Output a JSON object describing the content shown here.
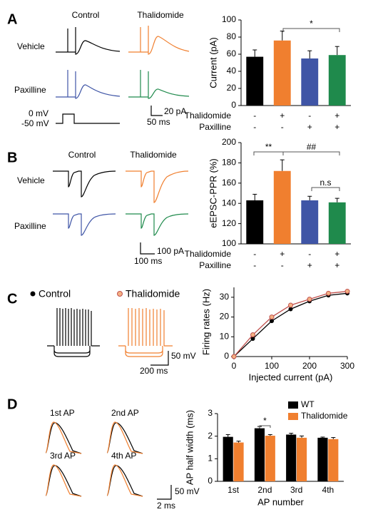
{
  "panel_labels": [
    "A",
    "B",
    "C",
    "D"
  ],
  "panel_a": {
    "columns": [
      "Control",
      "Thalidomide"
    ],
    "rows": [
      "Vehicle",
      "Paxilline"
    ],
    "scale_bar": [
      "20 pA",
      "50 ms"
    ],
    "voltage": [
      "0 mV",
      "-50 mV"
    ]
  },
  "panel_b": {
    "columns": [
      "Control",
      "Thalidomide"
    ],
    "rows": [
      "Vehicle",
      "Paxilline"
    ],
    "scale_bar": [
      "100 pA",
      "100 ms"
    ]
  },
  "panel_c": {
    "scale_bar": [
      "50 mV",
      "200 ms"
    ]
  },
  "panel_d": {
    "traces": [
      "1st AP",
      "2nd AP",
      "3rd AP",
      "4th AP"
    ],
    "scale_bar": [
      "50 mV",
      "2 ms"
    ]
  },
  "chart_data": [
    {
      "type": "bar",
      "ylabel": "Current (pA)",
      "values": [
        57,
        76,
        55,
        59
      ],
      "errors": [
        8,
        11,
        9,
        10
      ],
      "colors": [
        "#000000",
        "#f07f2f",
        "#3f55a6",
        "#1f8a4c"
      ],
      "category_rows": [
        {
          "name": "Thalidomide",
          "labels": [
            "-",
            "+",
            "-",
            "+"
          ]
        },
        {
          "name": "Paxilline",
          "labels": [
            "-",
            "-",
            "+",
            "+"
          ]
        }
      ],
      "ylim": [
        0,
        100
      ],
      "yticks": [
        0,
        20,
        40,
        60,
        80,
        100
      ],
      "annotations": [
        "*"
      ]
    },
    {
      "type": "bar",
      "ylabel": "eEPSC-PPR (%)",
      "values": [
        143,
        172,
        143,
        141
      ],
      "errors": [
        6,
        11,
        4,
        4
      ],
      "colors": [
        "#000000",
        "#f07f2f",
        "#3f55a6",
        "#1f8a4c"
      ],
      "category_rows": [
        {
          "name": "Thalidomide",
          "labels": [
            "-",
            "+",
            "-",
            "+"
          ]
        },
        {
          "name": "Paxilline",
          "labels": [
            "-",
            "-",
            "+",
            "+"
          ]
        }
      ],
      "ylim": [
        100,
        200
      ],
      "yticks": [
        100,
        120,
        140,
        160,
        180,
        200
      ],
      "annotations": [
        "**",
        "##",
        "n.s"
      ]
    },
    {
      "type": "line",
      "xlabel": "Injected current (pA)",
      "ylabel": "Firing rates (Hz)",
      "x": [
        0,
        50,
        100,
        150,
        200,
        250,
        300
      ],
      "series": [
        {
          "name": "Control",
          "color": "#000000",
          "values": [
            0,
            9,
            18,
            24,
            28,
            31,
            32
          ]
        },
        {
          "name": "Thalidomide",
          "color": "#c0504d",
          "values": [
            0,
            11,
            20,
            26,
            29,
            32,
            33
          ]
        }
      ],
      "xlim": [
        0,
        300
      ],
      "xticks": [
        0,
        100,
        200,
        300
      ],
      "ylim": [
        0,
        35
      ],
      "yticks": [
        0,
        10,
        20,
        30
      ]
    },
    {
      "type": "bar",
      "xlabel": "AP number",
      "ylabel": "AP half width (ms)",
      "categories": [
        "1st",
        "2nd",
        "3rd",
        "4th"
      ],
      "series": [
        {
          "name": "WT",
          "color": "#000000",
          "values": [
            1.97,
            2.35,
            2.07,
            1.93
          ],
          "errors": [
            0.1,
            0.08,
            0.06,
            0.03
          ]
        },
        {
          "name": "Thalidomide",
          "color": "#f07f2f",
          "values": [
            1.72,
            2.02,
            1.93,
            1.87
          ],
          "errors": [
            0.06,
            0.05,
            0.08,
            0.07
          ]
        }
      ],
      "ylim": [
        0,
        3
      ],
      "yticks": [
        0,
        1,
        2,
        3
      ],
      "legend": "upper right",
      "annotations": [
        "*"
      ]
    }
  ]
}
